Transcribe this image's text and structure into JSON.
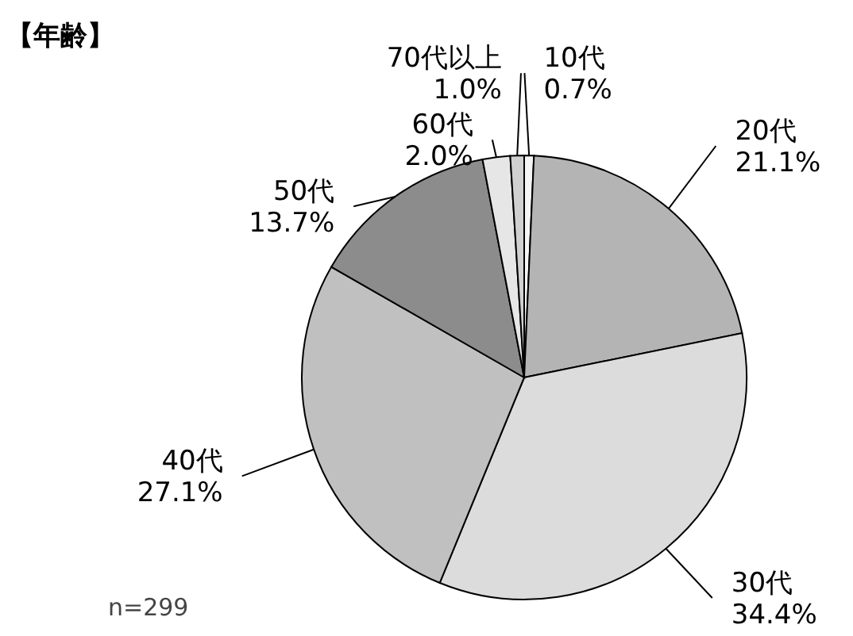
{
  "chart_data": {
    "type": "pie",
    "title": "【年齢】",
    "categories": [
      "10代",
      "20代",
      "30代",
      "40代",
      "50代",
      "60代",
      "70代以上"
    ],
    "values": [
      0.7,
      21.1,
      34.4,
      27.1,
      13.7,
      2.0,
      1.0
    ],
    "value_labels": [
      "0.7%",
      "21.1%",
      "34.4%",
      "27.1%",
      "13.7%",
      "2.0%",
      "1.0%"
    ],
    "colors": [
      "#f4f4f4",
      "#b4b4b4",
      "#dcdcdc",
      "#c0c0c0",
      "#8c8c8c",
      "#e6e6e6",
      "#d0d0d0"
    ],
    "annotations": [
      "n=299"
    ]
  }
}
